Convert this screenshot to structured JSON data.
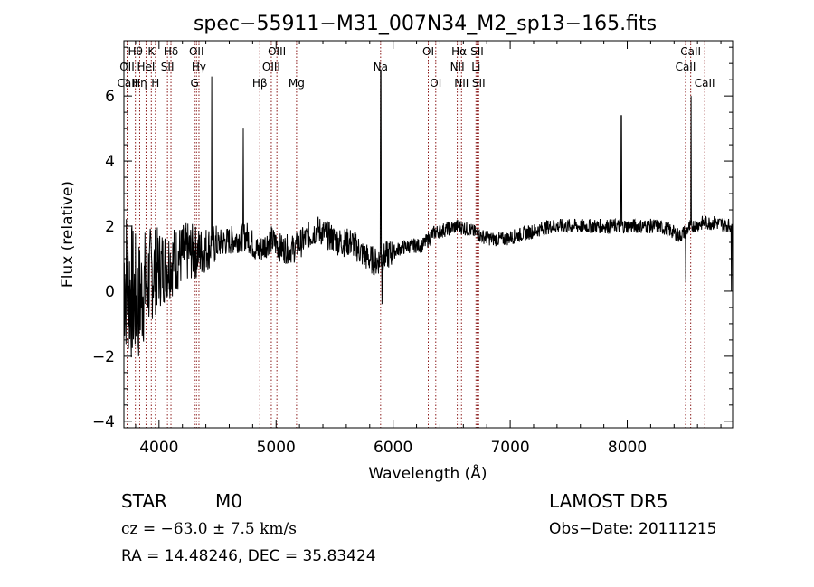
{
  "chart_data": {
    "type": "line",
    "title": "spec−55911−M31_007N34_M2_sp13−165.fits",
    "xlabel": "Wavelength (Å)",
    "ylabel": "Flux (relative)",
    "xlim": [
      3700,
      8900
    ],
    "ylim": [
      -4.2,
      7.7
    ],
    "xticks": [
      4000,
      5000,
      6000,
      7000,
      8000
    ],
    "xtick_labels": [
      "4000",
      "5000",
      "6000",
      "7000",
      "8000"
    ],
    "yticks": [
      -4,
      -2,
      0,
      2,
      4,
      6
    ],
    "ytick_labels": [
      "−4",
      "−2",
      "0",
      "2",
      "4",
      "6"
    ],
    "grid": false,
    "line_color": "#000000",
    "marker_color": "#8b1a1a",
    "spectrum_knots": [
      [
        3700,
        0.6
      ],
      [
        3760,
        0.0
      ],
      [
        3820,
        -0.4
      ],
      [
        3880,
        0.2
      ],
      [
        3950,
        0.6
      ],
      [
        4050,
        0.8
      ],
      [
        4150,
        1.0
      ],
      [
        4250,
        1.2
      ],
      [
        4350,
        1.2
      ],
      [
        4450,
        1.4
      ],
      [
        4550,
        1.5
      ],
      [
        4650,
        1.6
      ],
      [
        4750,
        1.7
      ],
      [
        4850,
        1.2
      ],
      [
        4950,
        1.6
      ],
      [
        5050,
        1.3
      ],
      [
        5150,
        1.3
      ],
      [
        5250,
        1.6
      ],
      [
        5350,
        1.9
      ],
      [
        5450,
        1.7
      ],
      [
        5550,
        1.5
      ],
      [
        5650,
        1.5
      ],
      [
        5750,
        1.1
      ],
      [
        5850,
        0.9
      ],
      [
        5950,
        1.1
      ],
      [
        6050,
        1.3
      ],
      [
        6150,
        1.4
      ],
      [
        6250,
        1.4
      ],
      [
        6350,
        1.8
      ],
      [
        6450,
        1.9
      ],
      [
        6550,
        2.0
      ],
      [
        6650,
        1.9
      ],
      [
        6750,
        1.7
      ],
      [
        6850,
        1.6
      ],
      [
        6950,
        1.6
      ],
      [
        7050,
        1.7
      ],
      [
        7150,
        1.8
      ],
      [
        7250,
        1.9
      ],
      [
        7350,
        2.0
      ],
      [
        7450,
        2.0
      ],
      [
        7550,
        2.0
      ],
      [
        7650,
        2.0
      ],
      [
        7750,
        2.0
      ],
      [
        7850,
        2.0
      ],
      [
        7950,
        2.0
      ],
      [
        8050,
        2.0
      ],
      [
        8150,
        2.0
      ],
      [
        8250,
        2.0
      ],
      [
        8350,
        1.9
      ],
      [
        8450,
        1.7
      ],
      [
        8550,
        2.0
      ],
      [
        8650,
        2.1
      ],
      [
        8750,
        2.1
      ],
      [
        8900,
        2.0
      ]
    ],
    "spectrum_features": [
      {
        "x": 4450,
        "y": 6.6
      },
      {
        "x": 4720,
        "y": 5.0
      },
      {
        "x": 5895,
        "y": 6.8
      },
      {
        "x": 5905,
        "y": -0.4
      },
      {
        "x": 7950,
        "y": 5.4
      },
      {
        "x": 8500,
        "y": 0.3
      },
      {
        "x": 8545,
        "y": 6.0
      },
      {
        "x": 8890,
        "y": 0.0
      }
    ],
    "lines": [
      {
        "label": "Hθ",
        "x": 3798,
        "row": 0
      },
      {
        "label": "OII",
        "x": 3727,
        "row": 1
      },
      {
        "label": "CaII",
        "x": 3730,
        "row": 2
      },
      {
        "label": "Hη",
        "x": 3835,
        "row": 2
      },
      {
        "label": "HeI",
        "x": 3889,
        "row": 1
      },
      {
        "label": "K",
        "x": 3934,
        "row": 0
      },
      {
        "label": "H",
        "x": 3969,
        "row": 2
      },
      {
        "label": "Hδ",
        "x": 4102,
        "row": 0
      },
      {
        "label": "SII",
        "x": 4072,
        "row": 1
      },
      {
        "label": "OII",
        "x": 4320,
        "row": 0
      },
      {
        "label": "Hγ",
        "x": 4341,
        "row": 1
      },
      {
        "label": "G",
        "x": 4304,
        "row": 2
      },
      {
        "label": "OIII",
        "x": 5007,
        "row": 0
      },
      {
        "label": "OIII",
        "x": 4959,
        "row": 1
      },
      {
        "label": "Hβ",
        "x": 4861,
        "row": 2
      },
      {
        "label": "Mg",
        "x": 5175,
        "row": 2
      },
      {
        "label": "Na",
        "x": 5893,
        "row": 1
      },
      {
        "label": "OI",
        "x": 6300,
        "row": 0
      },
      {
        "label": "OI",
        "x": 6364,
        "row": 2
      },
      {
        "label": "Hα",
        "x": 6563,
        "row": 0
      },
      {
        "label": "NII",
        "x": 6548,
        "row": 1
      },
      {
        "label": "NII",
        "x": 6584,
        "row": 2
      },
      {
        "label": "SII",
        "x": 6717,
        "row": 0
      },
      {
        "label": "Li",
        "x": 6708,
        "row": 1
      },
      {
        "label": "SII",
        "x": 6731,
        "row": 2
      },
      {
        "label": "CaII",
        "x": 8542,
        "row": 0
      },
      {
        "label": "CaII",
        "x": 8498,
        "row": 1
      },
      {
        "label": "CaII",
        "x": 8662,
        "row": 2
      }
    ]
  },
  "info": {
    "object_class": "STAR",
    "subclass": "M0",
    "survey": "LAMOST DR5",
    "cz": "cz = −63.0 ± 7.5 km/s",
    "obs_date": "Obs−Date: 20111215",
    "coords": "RA =  14.48246, DEC =  35.83424"
  }
}
